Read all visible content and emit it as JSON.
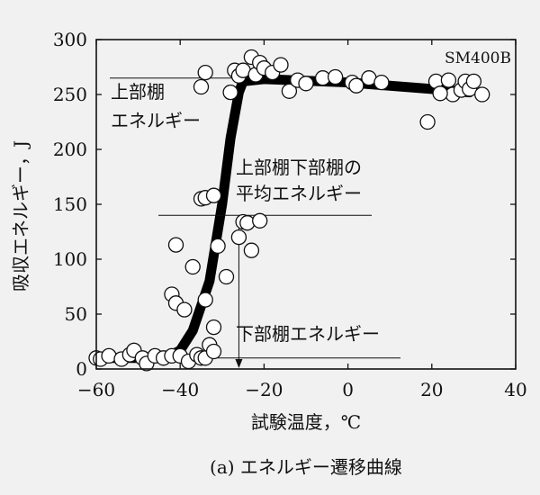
{
  "chart_data": {
    "type": "scatter",
    "title": "",
    "caption": "(a) エネルギー遷移曲線",
    "xlabel": "試験温度，℃",
    "ylabel": "吸収エネルギー，J",
    "xlim": [
      -60,
      40
    ],
    "ylim": [
      0,
      300
    ],
    "x_ticks": [
      -60,
      -40,
      -20,
      0,
      20,
      40
    ],
    "y_ticks": [
      0,
      50,
      100,
      150,
      200,
      250,
      300
    ],
    "x_tick_labels": [
      "−60",
      "−40",
      "−20",
      "0",
      "20",
      "40"
    ],
    "y_tick_labels": [
      "0",
      "50",
      "100",
      "150",
      "200",
      "250",
      "300"
    ],
    "grid": false,
    "material_label": "SM400B",
    "upper_shelf_energy": 265,
    "mean_energy": 140,
    "lower_shelf_energy": 10,
    "transition_temperature": -26,
    "annotations": {
      "upper_shelf": [
        "上部棚",
        "エネルギー"
      ],
      "mean": [
        "上部棚下部棚の",
        "平均エネルギー"
      ],
      "lower_shelf": "下部棚エネルギー"
    },
    "transition_curve": [
      [
        -59,
        10
      ],
      [
        -47,
        10
      ],
      [
        -43,
        11
      ],
      [
        -40,
        17
      ],
      [
        -37,
        35
      ],
      [
        -33,
        80
      ],
      [
        -30,
        150
      ],
      [
        -28,
        210
      ],
      [
        -26,
        252
      ],
      [
        -25,
        262
      ],
      [
        -20,
        264
      ],
      [
        0,
        261
      ],
      [
        20,
        255
      ],
      [
        29,
        252
      ]
    ],
    "points": [
      [
        -60,
        10
      ],
      [
        -59,
        9
      ],
      [
        -57,
        12
      ],
      [
        -54,
        9
      ],
      [
        -52,
        13
      ],
      [
        -51,
        17
      ],
      [
        -49,
        10
      ],
      [
        -48,
        5
      ],
      [
        -46,
        12
      ],
      [
        -44,
        10
      ],
      [
        -42,
        12
      ],
      [
        -42,
        68
      ],
      [
        -41,
        60
      ],
      [
        -41,
        113
      ],
      [
        -40,
        12
      ],
      [
        -39,
        54
      ],
      [
        -38,
        7
      ],
      [
        -37,
        93
      ],
      [
        -36,
        13
      ],
      [
        -35,
        10
      ],
      [
        -35,
        155
      ],
      [
        -34,
        63
      ],
      [
        -34,
        156
      ],
      [
        -34,
        10
      ],
      [
        -33,
        22
      ],
      [
        -32,
        16
      ],
      [
        -32,
        158
      ],
      [
        -32,
        38
      ],
      [
        -31,
        112
      ],
      [
        -29,
        84
      ],
      [
        -28,
        252
      ],
      [
        -27,
        272
      ],
      [
        -34,
        270
      ],
      [
        -35,
        257
      ],
      [
        -26,
        267
      ],
      [
        -25,
        272
      ],
      [
        -23,
        284
      ],
      [
        -22,
        268
      ],
      [
        -21,
        279
      ],
      [
        -20,
        274
      ],
      [
        -18,
        270
      ],
      [
        -16,
        277
      ],
      [
        -14,
        253
      ],
      [
        -12,
        263
      ],
      [
        -10,
        260
      ],
      [
        -26,
        120
      ],
      [
        -25,
        134
      ],
      [
        -24,
        133
      ],
      [
        -23,
        108
      ],
      [
        -21,
        135
      ],
      [
        -6,
        265
      ],
      [
        -3,
        266
      ],
      [
        1,
        261
      ],
      [
        2,
        258
      ],
      [
        5,
        265
      ],
      [
        8,
        261
      ],
      [
        19,
        225
      ],
      [
        21,
        262
      ],
      [
        24,
        263
      ],
      [
        25,
        250
      ],
      [
        27,
        254
      ],
      [
        28,
        262
      ],
      [
        29,
        255
      ],
      [
        22,
        251
      ],
      [
        30,
        262
      ],
      [
        32,
        250
      ]
    ]
  }
}
